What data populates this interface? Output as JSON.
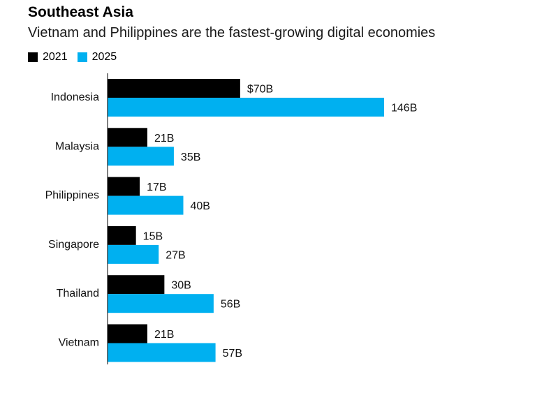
{
  "chart_data": {
    "type": "bar",
    "orientation": "horizontal",
    "title": "Southeast Asia",
    "subtitle": "Vietnam and Philippines are the fastest-growing digital economies",
    "categories": [
      "Indonesia",
      "Malaysia",
      "Philippines",
      "Singapore",
      "Thailand",
      "Vietnam"
    ],
    "series": [
      {
        "name": "2021",
        "color": "#000000",
        "values": [
          70,
          21,
          17,
          15,
          30,
          21
        ],
        "labels": [
          "$70B",
          "21B",
          "17B",
          "15B",
          "30B",
          "21B"
        ]
      },
      {
        "name": "2025",
        "color": "#00b0f0",
        "values": [
          146,
          35,
          40,
          27,
          56,
          57
        ],
        "labels": [
          "146B",
          "35B",
          "40B",
          "27B",
          "56B",
          "57B"
        ]
      }
    ],
    "xlim": [
      0,
      146
    ],
    "unit": "B",
    "grid": false,
    "legend_position": "top-left"
  }
}
